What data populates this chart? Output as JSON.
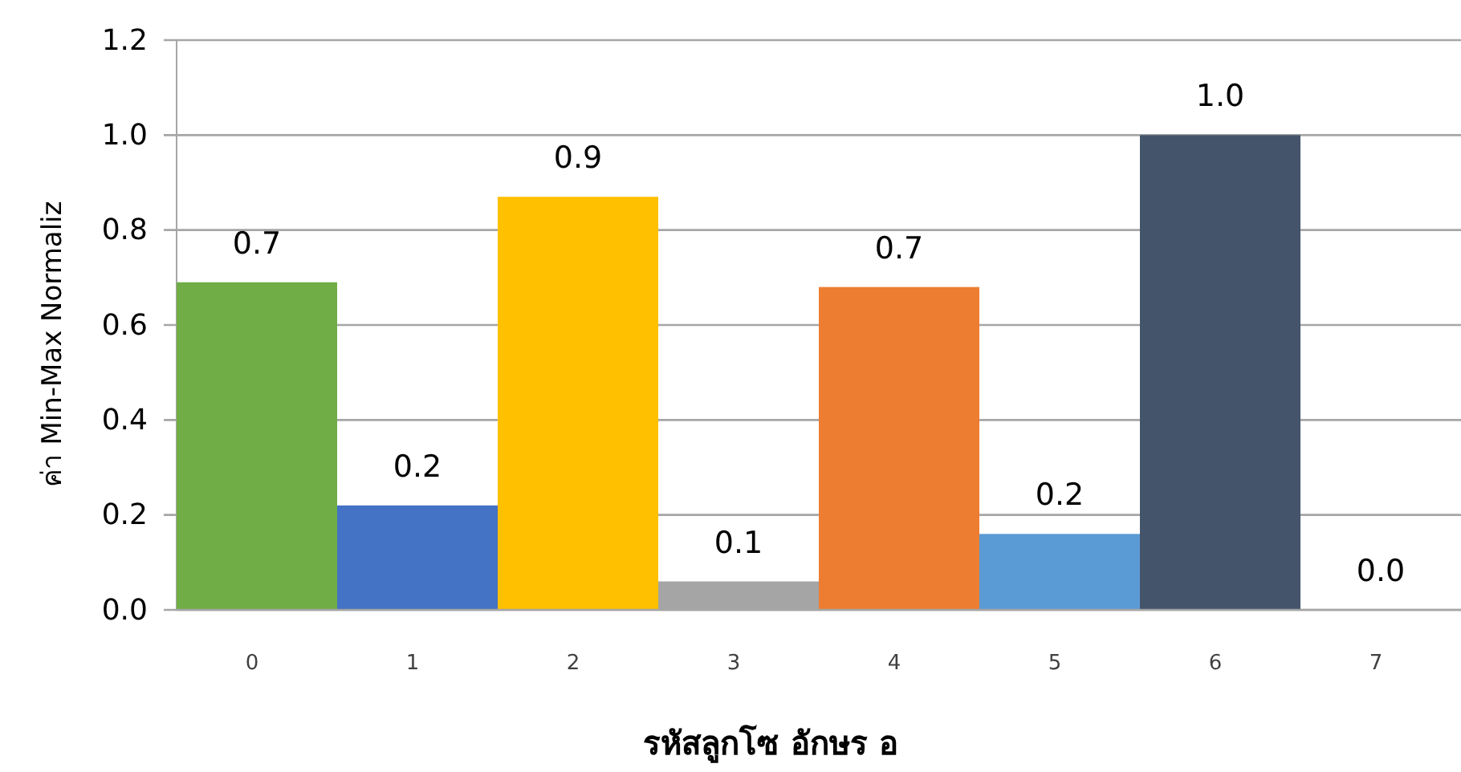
{
  "chart_data": {
    "type": "bar",
    "xlabel": "รหัสลูกโซ อักษร อ",
    "ylabel": "ค่า Min-Max Normaliz",
    "categories": [
      "0",
      "1",
      "2",
      "3",
      "4",
      "5",
      "6",
      "7"
    ],
    "values": [
      0.69,
      0.22,
      0.87,
      0.06,
      0.68,
      0.16,
      1.0,
      0.0
    ],
    "colors": [
      "#70ad47",
      "#4472c4",
      "#ffc000",
      "#a5a5a5",
      "#ed7d31",
      "#5b9bd5",
      "#44546a",
      "#264478"
    ],
    "value_labels": [
      "0.7",
      "0.2",
      "0.9",
      "0.1",
      "0.7",
      "0.2",
      "1.0",
      "0.0"
    ],
    "ylim": [
      0,
      1.2
    ],
    "yticks": [
      {
        "value": 0,
        "label": "0.0"
      },
      {
        "value": 0.2,
        "label": "0.2"
      },
      {
        "value": 0.4,
        "label": "0.4"
      },
      {
        "value": 0.6,
        "label": "0.6"
      },
      {
        "value": 0.8,
        "label": "0.8"
      },
      {
        "value": 1.0,
        "label": "1.0"
      },
      {
        "value": 1.2,
        "label": "1.2"
      }
    ],
    "grid": "y"
  }
}
